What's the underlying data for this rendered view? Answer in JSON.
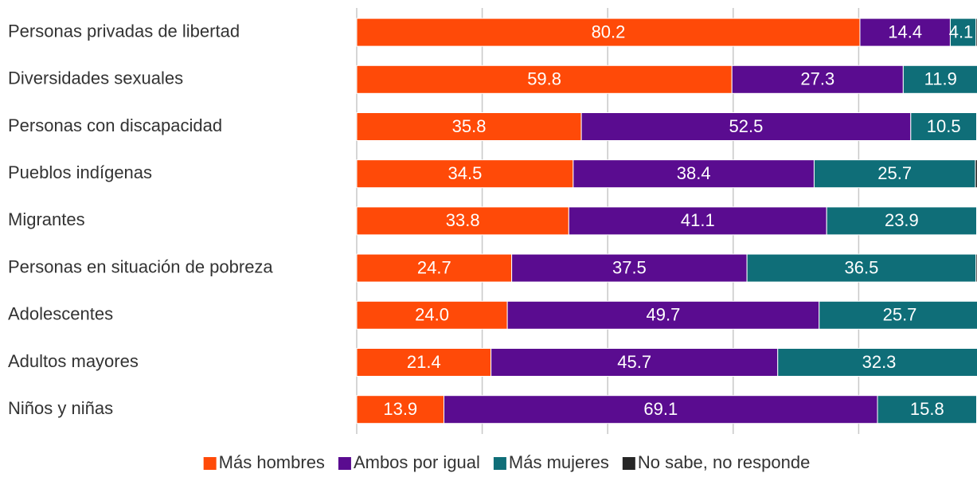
{
  "chart_data": {
    "type": "stacked-barh",
    "categories": [
      "Personas privadas de libertad",
      "Diversidades sexuales",
      "Personas con discapacidad",
      "Pueblos indígenas",
      "Migrantes",
      "Personas en situación de pobreza",
      "Adolescentes",
      "Adultos mayores",
      "Niños y niñas"
    ],
    "series": [
      {
        "name": "Más hombres",
        "color": "#ff4a08",
        "values": [
          80.2,
          59.8,
          35.8,
          34.5,
          33.8,
          24.7,
          24.0,
          21.4,
          13.9
        ],
        "value_labels": [
          "80.2",
          "59.8",
          "35.8",
          "34.5",
          "33.8",
          "24.7",
          "24.0",
          "21.4",
          "13.9"
        ]
      },
      {
        "name": "Ambos por igual",
        "color": "#5a0c90",
        "values": [
          14.4,
          27.3,
          52.5,
          38.4,
          41.1,
          37.5,
          49.7,
          45.7,
          69.1
        ]
      },
      {
        "name": "Más mujeres",
        "color": "#0f6e78",
        "values": [
          4.1,
          11.9,
          10.5,
          25.7,
          23.9,
          36.5,
          25.7,
          32.3,
          15.8
        ]
      },
      {
        "name": "No sabe, no responde",
        "color": "#262626",
        "values": [
          1.3,
          1.0,
          1.2,
          1.4,
          1.2,
          1.3,
          0.6,
          0.6,
          1.2
        ]
      }
    ],
    "xlim": [
      0,
      100
    ],
    "xticks": [
      0,
      20,
      40,
      60,
      80,
      100
    ],
    "grid": true,
    "legend": "bottom"
  }
}
